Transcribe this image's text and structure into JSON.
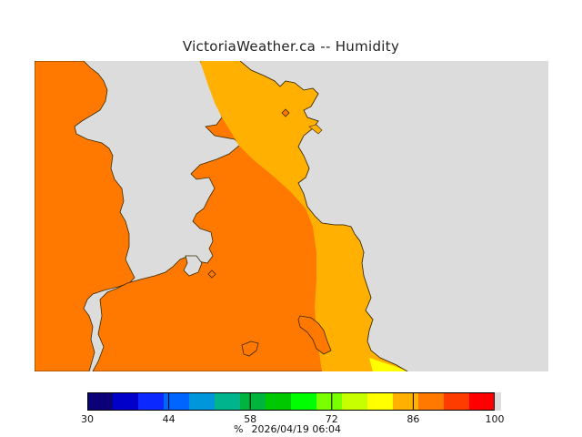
{
  "title": "VictoriaWeather.ca -- Humidity",
  "map": {
    "variable": "Humidity",
    "colors": {
      "water": "#dcdcdc",
      "band_82_86": "#ffb000",
      "band_86_90": "#ff7800",
      "band_76_79": "#ffff00",
      "coastline": "#3a2a00"
    },
    "station_icon": "diamond-station-marker"
  },
  "legend": {
    "colors": [
      "#0a0078",
      "#0000c8",
      "#0a28ff",
      "#0064ff",
      "#0096dc",
      "#00b48c",
      "#00b43c",
      "#00c800",
      "#00ff00",
      "#78ff00",
      "#c8ff00",
      "#ffff00",
      "#ffb000",
      "#ff7800",
      "#ff3c00",
      "#ff0000"
    ],
    "end_color": "#dcdcdc",
    "ticks": [
      "30",
      "44",
      "58",
      "72",
      "86",
      "100"
    ],
    "unit": "%",
    "timestamp": "2026/04/19 06:04"
  }
}
